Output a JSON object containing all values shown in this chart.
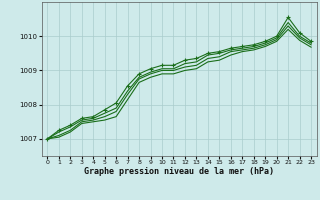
{
  "title": "Graphe pression niveau de la mer (hPa)",
  "background_color": "#ceeaea",
  "grid_color": "#aacccc",
  "line_color": "#1a6e1a",
  "x_ticks": [
    0,
    1,
    2,
    3,
    4,
    5,
    6,
    7,
    8,
    9,
    10,
    11,
    12,
    13,
    14,
    15,
    16,
    17,
    18,
    19,
    20,
    21,
    22,
    23
  ],
  "ylim": [
    1006.5,
    1011.0
  ],
  "yticks": [
    1007,
    1008,
    1009,
    1010
  ],
  "series": [
    [
      1007.0,
      1007.25,
      1007.4,
      1007.6,
      1007.65,
      1007.85,
      1008.05,
      1008.55,
      1008.9,
      1009.05,
      1009.15,
      1009.15,
      1009.3,
      1009.35,
      1009.5,
      1009.55,
      1009.65,
      1009.7,
      1009.75,
      1009.85,
      1010.0,
      1010.55,
      1010.1,
      1009.85
    ],
    [
      1007.0,
      1007.2,
      1007.35,
      1007.55,
      1007.6,
      1007.75,
      1007.9,
      1008.4,
      1008.8,
      1008.95,
      1009.05,
      1009.05,
      1009.2,
      1009.25,
      1009.45,
      1009.5,
      1009.6,
      1009.65,
      1009.7,
      1009.8,
      1009.95,
      1010.4,
      1010.0,
      1009.8
    ],
    [
      1007.0,
      1007.1,
      1007.25,
      1007.5,
      1007.55,
      1007.65,
      1007.8,
      1008.3,
      1008.75,
      1008.9,
      1009.0,
      1009.0,
      1009.1,
      1009.15,
      1009.35,
      1009.4,
      1009.55,
      1009.6,
      1009.65,
      1009.75,
      1009.9,
      1010.3,
      1009.95,
      1009.75
    ],
    [
      1007.0,
      1007.05,
      1007.2,
      1007.45,
      1007.5,
      1007.55,
      1007.65,
      1008.15,
      1008.65,
      1008.8,
      1008.9,
      1008.9,
      1009.0,
      1009.05,
      1009.25,
      1009.3,
      1009.45,
      1009.55,
      1009.6,
      1009.7,
      1009.85,
      1010.2,
      1009.88,
      1009.68
    ]
  ],
  "marker_indices": [
    0,
    1,
    2,
    3,
    4,
    5,
    6,
    7,
    8,
    9,
    10,
    11,
    12,
    13,
    14,
    15,
    16,
    17,
    18,
    19,
    20,
    21,
    22,
    23
  ],
  "marker_series_idx": 0
}
